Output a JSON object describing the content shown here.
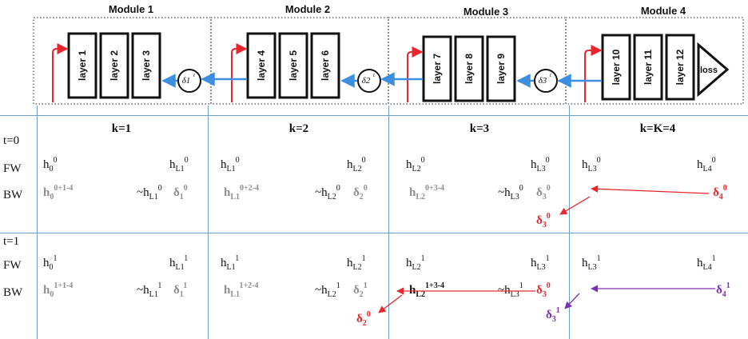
{
  "modules": [
    {
      "title": "Module 1",
      "layers": [
        "layer 1",
        "layer 2",
        "layer 3"
      ],
      "delta": "δ1"
    },
    {
      "title": "Module 2",
      "layers": [
        "layer 4",
        "layer 5",
        "layer 6"
      ],
      "delta": "δ2"
    },
    {
      "title": "Module 3",
      "layers": [
        "layer 7",
        "layer 8",
        "layer 9"
      ],
      "delta": "δ3"
    },
    {
      "title": "Module 4",
      "layers": [
        "layer 10",
        "layer 11",
        "layer 12"
      ],
      "loss": "loss"
    }
  ],
  "columns": [
    "k=1",
    "k=2",
    "k=3",
    "k=K=4"
  ],
  "rows": {
    "t0": "t=0",
    "t1": "t=1",
    "fw": "FW",
    "bw": "BW"
  },
  "t0": {
    "fw": [
      {
        "left": [
          "h",
          "0",
          "0"
        ],
        "right": [
          "h",
          "L1",
          "0"
        ]
      },
      {
        "left": [
          "h",
          "L1",
          "0"
        ],
        "right": [
          "h",
          "L2",
          "0"
        ]
      },
      {
        "left": [
          "h",
          "L2",
          "0"
        ],
        "right": [
          "h",
          "L3",
          "0"
        ]
      },
      {
        "left": [
          "h",
          "L3",
          "0"
        ],
        "right": [
          "h",
          "L4",
          "0"
        ]
      }
    ],
    "bw": [
      {
        "left": [
          "h",
          "0",
          "0+1-4"
        ],
        "mid": [
          "~h",
          "L1",
          "0"
        ],
        "delta": [
          "δ",
          "1",
          "0"
        ]
      },
      {
        "left": [
          "h",
          "L1",
          "0+2-4"
        ],
        "mid": [
          "~h",
          "L2",
          "0"
        ],
        "delta": [
          "δ",
          "2",
          "0"
        ]
      },
      {
        "left": [
          "h",
          "L2",
          "0+3-4"
        ],
        "mid": [
          "~h",
          "L3",
          "0"
        ],
        "delta": [
          "δ",
          "3",
          "0"
        ]
      },
      {
        "delta": [
          "δ",
          "4",
          "0"
        ]
      }
    ],
    "extra": {
      "delta3": [
        "δ",
        "3",
        "0"
      ]
    }
  },
  "t1": {
    "fw": [
      {
        "left": [
          "h",
          "0",
          "1"
        ],
        "right": [
          "h",
          "L1",
          "1"
        ]
      },
      {
        "left": [
          "h",
          "L1",
          "1"
        ],
        "right": [
          "h",
          "L2",
          "1"
        ]
      },
      {
        "left": [
          "h",
          "L2",
          "1"
        ],
        "right": [
          "h",
          "L3",
          "1"
        ]
      },
      {
        "left": [
          "h",
          "L3",
          "1"
        ],
        "right": [
          "h",
          "L4",
          "1"
        ]
      }
    ],
    "bw": [
      {
        "left": [
          "h",
          "0",
          "1+1-4"
        ],
        "mid": [
          "~h",
          "L1",
          "1"
        ],
        "delta": [
          "δ",
          "1",
          "1"
        ]
      },
      {
        "left": [
          "h",
          "L1",
          "1+2-4"
        ],
        "mid": [
          "~h",
          "L2",
          "1"
        ],
        "delta": [
          "δ",
          "2",
          "1"
        ]
      },
      {
        "left": [
          "h",
          "L2",
          "1+3-4"
        ],
        "mid": [
          "~h",
          "L3",
          "1"
        ],
        "delta": [
          "δ",
          "3",
          "0"
        ]
      },
      {
        "delta": [
          "δ",
          "4",
          "1"
        ]
      }
    ],
    "extra": {
      "delta2": [
        "δ",
        "2",
        "0"
      ],
      "delta3": [
        "δ",
        "3",
        "1"
      ]
    }
  },
  "colors": {
    "red": "#e8262b",
    "blue": "#3b8fe0",
    "purple": "#7b2fb5",
    "grey": "#8e8e8e",
    "grid": "#6f9fc3",
    "black": "#111111"
  }
}
